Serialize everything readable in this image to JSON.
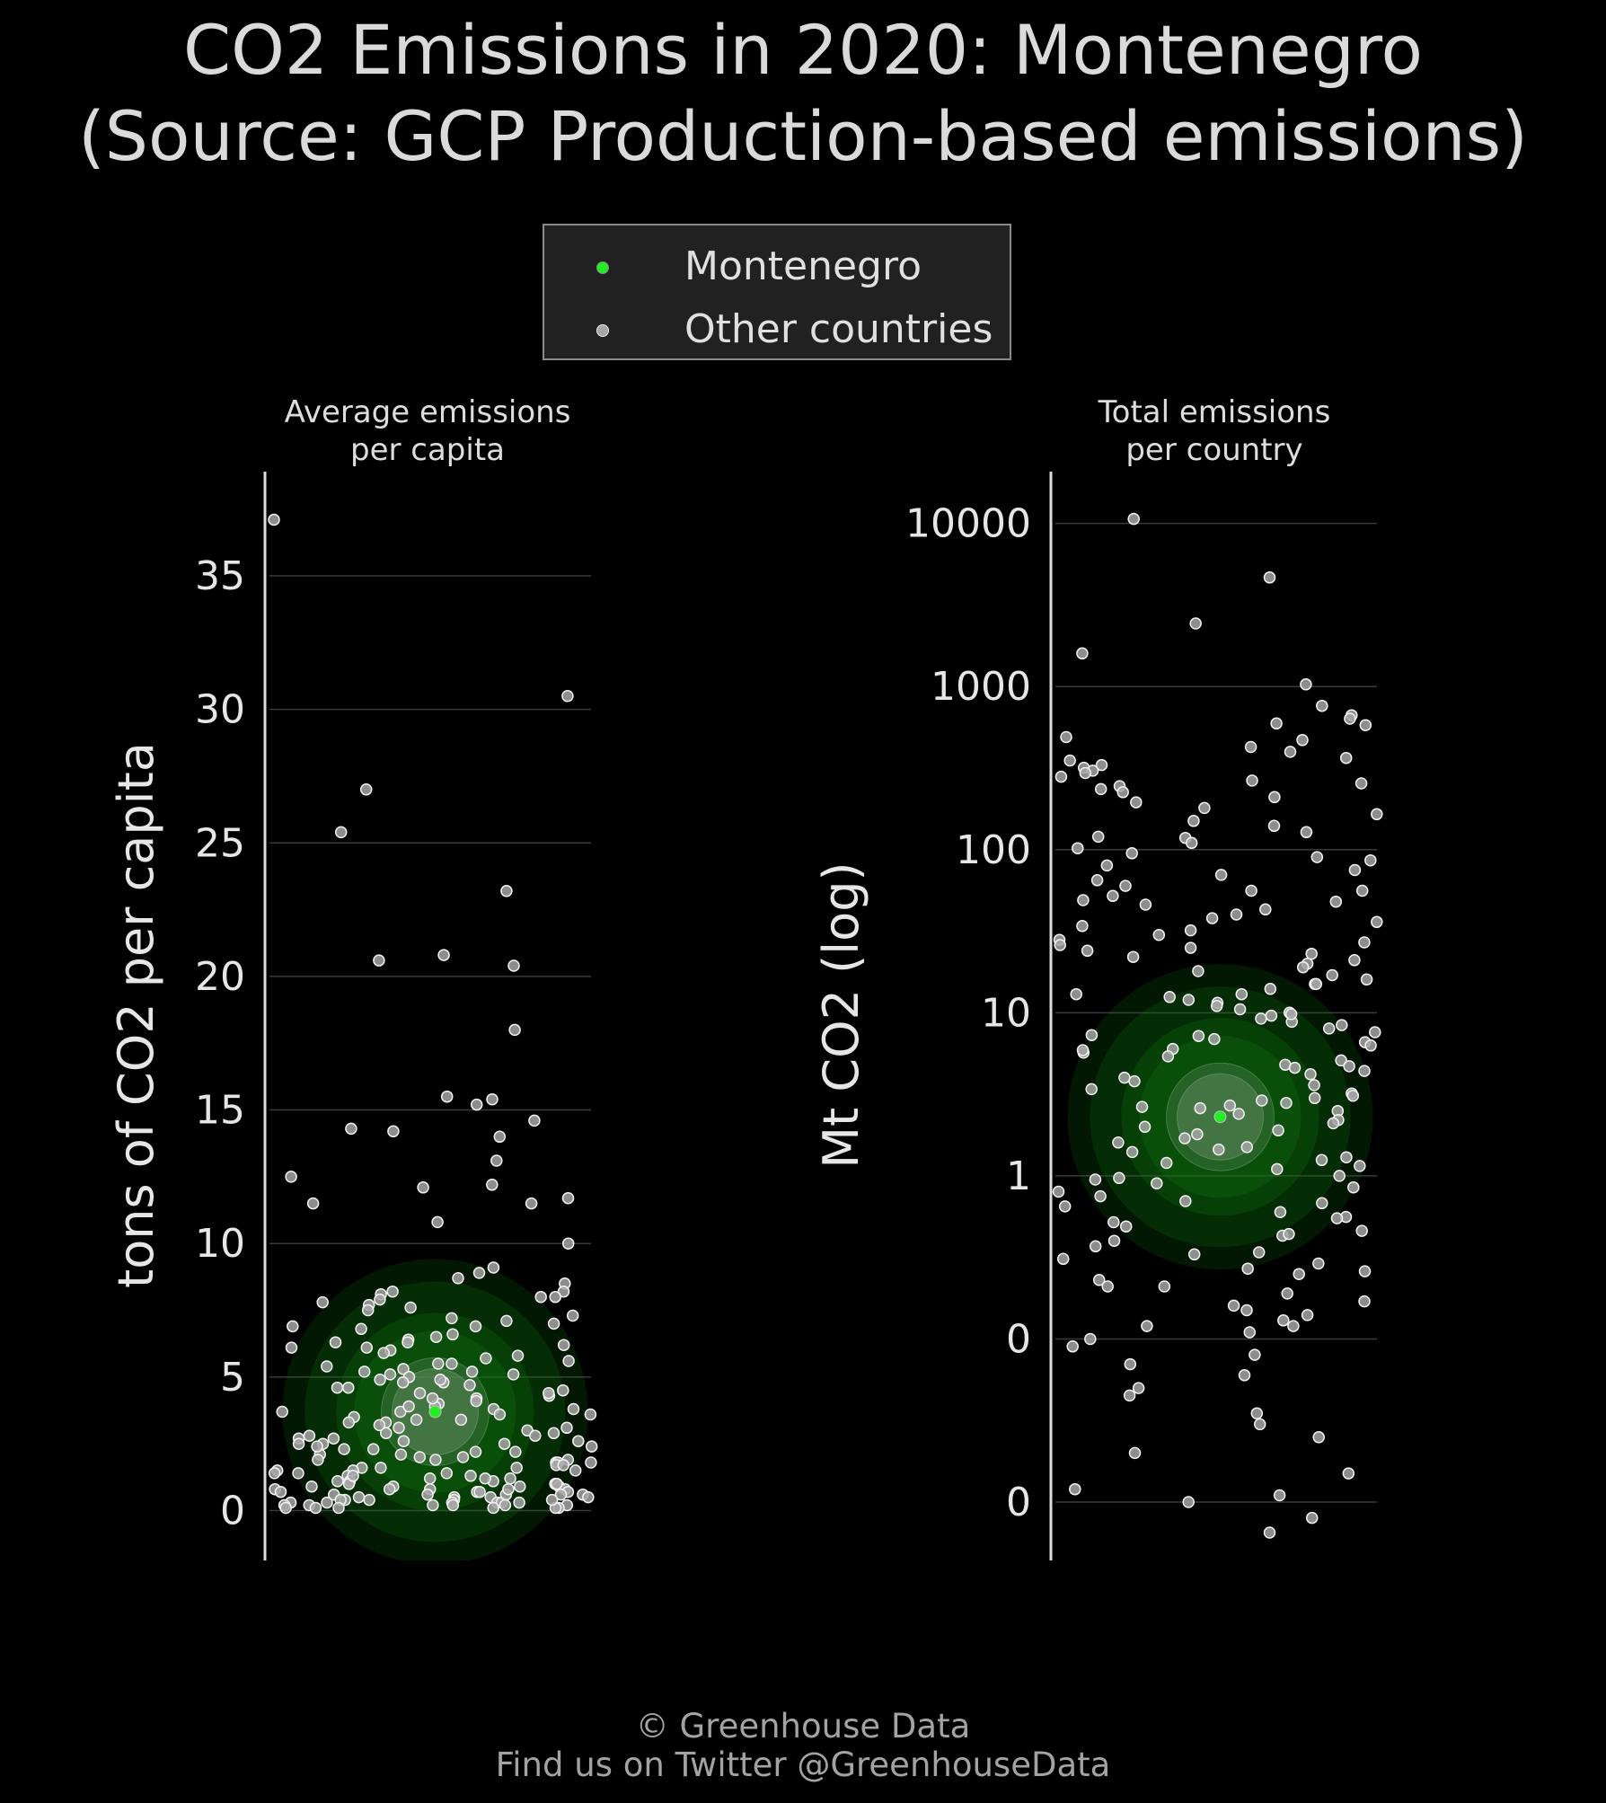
{
  "title": {
    "line1": "CO2 Emissions in 2020: Montenegro",
    "line2": "(Source: GCP Production-based emissions)"
  },
  "legend": {
    "items": [
      {
        "label": "Montenegro",
        "color": "#22ee22"
      },
      {
        "label": "Other countries",
        "color": "#a6a6a6"
      }
    ]
  },
  "footer": {
    "line1": "© Greenhouse Data",
    "line2": "Find us on Twitter @GreenhouseData"
  },
  "colors": {
    "background": "#000000",
    "highlight": "#22ee22",
    "other": "#a6a6a6",
    "grid": "#3a3a3a",
    "axis": "#dddddd"
  },
  "chart_data": [
    {
      "type": "scatter",
      "title": "Average emissions\nper capita",
      "ylabel": "tons of CO2 per capita",
      "ylim": [
        -1.8,
        38.8
      ],
      "yticks": [
        0,
        5,
        10,
        15,
        20,
        25,
        30,
        35
      ],
      "ytick_labels": [
        "0",
        "5",
        "10",
        "15",
        "20",
        "25",
        "30",
        "35"
      ],
      "grid": true,
      "highlight": {
        "name": "Montenegro",
        "value": 3.7
      },
      "others": [
        37.1,
        30.5,
        27.0,
        25.4,
        23.2,
        20.8,
        20.6,
        20.4,
        18.0,
        15.5,
        15.4,
        15.2,
        14.6,
        14.3,
        14.2,
        14.0,
        13.1,
        12.5,
        12.2,
        12.1,
        11.7,
        11.5,
        11.5,
        10.8,
        10.0,
        9.1,
        8.9,
        8.7,
        8.5,
        8.2,
        8.2,
        8.1,
        8.0,
        7.9,
        7.8,
        7.7,
        7.6,
        7.5,
        7.3,
        7.2,
        7.1,
        7.0,
        6.9,
        6.8,
        6.6,
        6.5,
        6.4,
        6.3,
        6.2,
        6.1,
        6.0,
        5.9,
        5.7,
        5.6,
        5.5,
        5.4,
        5.3,
        5.2,
        5.1,
        5.0,
        4.9,
        4.8,
        4.7,
        4.6,
        4.5,
        4.4,
        4.3,
        4.2,
        4.1,
        4.0,
        3.9,
        3.8,
        3.8,
        3.7,
        3.6,
        3.5,
        3.4,
        3.3,
        3.2,
        3.1,
        3.0,
        2.9,
        2.8,
        2.8,
        2.7,
        2.6,
        2.5,
        2.5,
        2.4,
        2.3,
        2.2,
        2.1,
        2.0,
        2.0,
        1.9,
        1.9,
        1.8,
        1.8,
        1.7,
        1.7,
        1.6,
        1.6,
        1.5,
        1.5,
        1.4,
        1.4,
        1.3,
        1.3,
        1.2,
        1.2,
        1.1,
        1.1,
        1.0,
        1.0,
        0.9,
        0.9,
        0.9,
        0.8,
        0.8,
        0.8,
        0.7,
        0.7,
        0.7,
        0.6,
        0.6,
        0.6,
        0.5,
        0.5,
        0.5,
        0.4,
        0.4,
        0.4,
        0.3,
        0.3,
        0.3,
        0.3,
        0.2,
        0.2,
        0.2,
        0.2,
        0.1,
        0.1,
        0.1,
        0.1,
        0.1,
        4.4,
        3.6,
        2.6,
        5.8,
        6.3,
        1.3,
        0.6,
        8.0,
        2.1,
        3.3,
        4.8,
        1.0,
        0.3,
        2.9,
        5.2,
        0.8,
        1.6,
        0.2,
        3.9,
        4.6,
        2.3,
        0.5,
        1.8,
        6.9,
        0.4,
        3.1,
        1.1,
        0.7,
        2.4,
        4.2,
        5.5,
        0.9,
        1.5,
        0.6,
        2.7,
        3.4,
        0.3,
        1.2,
        4.9,
        0.2,
        1.9,
        2.2,
        0.8,
        5.1,
        3.7,
        0.4,
        1.4,
        0.1,
        2.5,
        6.1
      ]
    },
    {
      "type": "scatter",
      "title": "Total emissions\nper country",
      "ylabel": "Mt CO2 (log)",
      "yscale": "log",
      "ylim": [
        0.0045,
        20000
      ],
      "yticks": [
        0.01,
        0.1,
        1,
        10,
        100,
        1000,
        10000
      ],
      "ytick_labels": [
        "0",
        "0",
        "1",
        "10",
        "100",
        "1000",
        "10000"
      ],
      "grid": true,
      "highlight": {
        "name": "Montenegro",
        "value": 2.3
      },
      "others": [
        10668,
        4665,
        2435,
        1597,
        1031,
        762,
        667,
        635,
        594,
        580,
        490,
        470,
        426,
        398,
        365,
        352,
        330,
        318,
        305,
        295,
        280,
        265,
        255,
        245,
        235,
        225,
        210,
        195,
        180,
        165,
        150,
        140,
        128,
        118,
        110,
        102,
        95,
        90,
        86,
        80,
        75,
        70,
        65,
        60,
        56,
        52,
        49,
        46,
        43,
        40,
        38,
        36,
        34,
        32,
        30,
        28,
        26,
        25,
        24,
        22,
        21,
        20,
        19,
        18,
        17,
        16,
        15,
        14,
        13,
        12.5,
        12,
        11.5,
        11,
        10.5,
        10,
        9.6,
        9.2,
        8.8,
        8.4,
        8.0,
        7.6,
        7.2,
        6.9,
        6.6,
        6.3,
        6.0,
        5.7,
        5.4,
        5.1,
        4.8,
        4.6,
        4.4,
        4.2,
        4.0,
        3.8,
        3.6,
        3.4,
        3.2,
        3.0,
        2.9,
        2.8,
        2.7,
        2.6,
        2.5,
        2.4,
        2.2,
        2.0,
        1.9,
        1.8,
        1.7,
        1.6,
        1.5,
        1.4,
        1.3,
        1.25,
        1.2,
        1.1,
        1.0,
        0.95,
        0.9,
        0.85,
        0.8,
        0.75,
        0.7,
        0.65,
        0.6,
        0.56,
        0.52,
        0.49,
        0.46,
        0.43,
        0.4,
        0.37,
        0.34,
        0.31,
        0.29,
        0.27,
        0.25,
        0.23,
        0.21,
        0.19,
        0.17,
        0.16,
        0.15,
        0.14,
        0.13,
        0.12,
        0.11,
        0.1,
        0.09,
        0.08,
        0.07,
        0.06,
        0.05,
        0.045,
        0.035,
        0.03,
        0.025,
        0.02,
        0.015,
        0.012,
        0.011,
        0.01,
        0.008,
        0.0065,
        15,
        7.3,
        3.1,
        1.45,
        0.68,
        0.33,
        48,
        23,
        9.8,
        4.7,
        2.1,
        0.97,
        0.44,
        0.21,
        120,
        56,
        27,
        13,
        5.9,
        2.65,
        1.15,
        0.55,
        0.26,
        0.12
      ]
    }
  ]
}
